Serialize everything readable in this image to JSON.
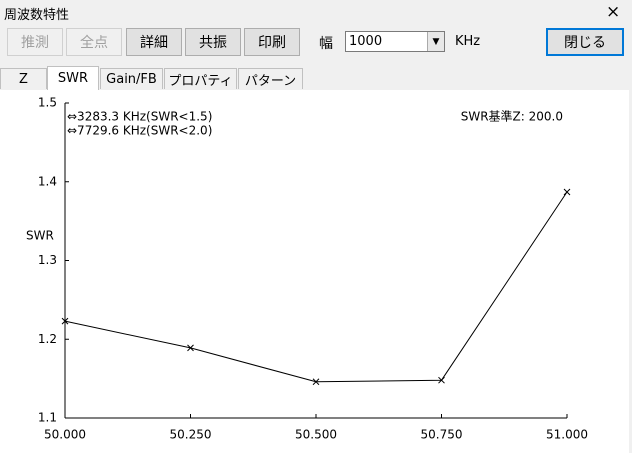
{
  "window": {
    "title": "周波数特性",
    "close": "×"
  },
  "toolbar": {
    "buttons": [
      "推測",
      "全点",
      "詳細",
      "共振",
      "印刷"
    ],
    "width_label": "幅",
    "width_value": "1000",
    "unit": "KHz",
    "close_button": "閉じる"
  },
  "tabs": [
    "Z",
    "SWR",
    "Gain/FB",
    "プロパティ",
    "パターン"
  ],
  "chart_data": {
    "type": "line",
    "y_label": "SWR",
    "annotations": [
      "⇔3283.3 KHz(SWR<1.5)",
      "⇔7729.6 KHz(SWR<2.0)",
      "SWR基準Z: 200.0"
    ],
    "x": [
      50.0,
      50.25,
      50.5,
      50.75,
      51.0
    ],
    "values": [
      1.223,
      1.189,
      1.146,
      1.148,
      1.387
    ],
    "color": "#000000",
    "marker": "x",
    "xlim": [
      50.0,
      51.0
    ],
    "xticks": [
      {
        "value": 50.0,
        "label": "50.000"
      },
      {
        "value": 50.25,
        "label": "50.250"
      },
      {
        "value": 50.5,
        "label": "50.500"
      },
      {
        "value": 50.75,
        "label": "50.750"
      },
      {
        "value": 51.0,
        "label": "51.000"
      }
    ],
    "ylim": [
      1.1,
      1.5
    ],
    "yticks": [
      1.1,
      1.2,
      1.3,
      1.4,
      1.5
    ]
  }
}
